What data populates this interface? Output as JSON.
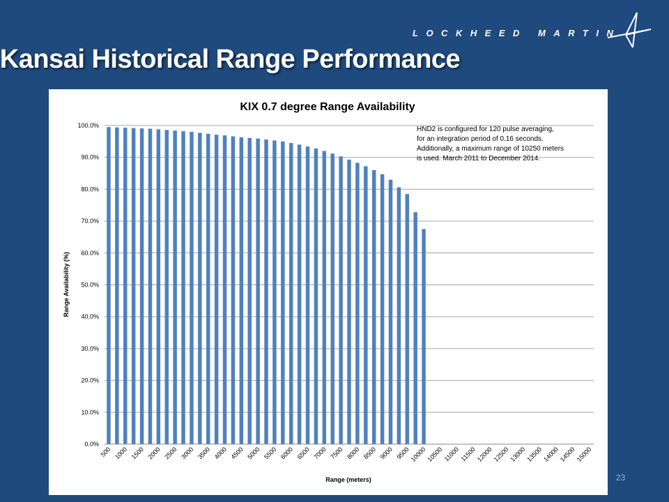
{
  "slide": {
    "brand": "LOCKHEED MARTIN",
    "title": "Kansai Historical Range Performance",
    "page_number": "23"
  },
  "colors": {
    "background": "#1f4a7e",
    "bar": "#4f81bd",
    "grid": "#a6a6a6"
  },
  "icons": {
    "brand_logo": "lockheed-star-icon"
  },
  "chart_data": {
    "type": "bar",
    "title": "KIX 0.7 degree Range Availability",
    "xlabel": "Range (meters)",
    "ylabel": "Range Availability (%)",
    "ylim": [
      0,
      100
    ],
    "yticks": [
      "0.0%",
      "10.0%",
      "20.0%",
      "30.0%",
      "40.0%",
      "50.0%",
      "60.0%",
      "70.0%",
      "80.0%",
      "90.0%",
      "100.0%"
    ],
    "categories": [
      "500",
      "750",
      "1000",
      "1250",
      "1500",
      "1750",
      "2000",
      "2250",
      "2500",
      "2750",
      "3000",
      "3250",
      "3500",
      "3750",
      "4000",
      "4250",
      "4500",
      "4750",
      "5000",
      "5250",
      "5500",
      "5750",
      "6000",
      "6250",
      "6500",
      "6750",
      "7000",
      "7250",
      "7500",
      "7750",
      "8000",
      "8250",
      "8500",
      "8750",
      "9000",
      "9250",
      "9500",
      "9750",
      "10000",
      "10250",
      "10500",
      "10750",
      "11000",
      "11250",
      "11500",
      "11750",
      "12000",
      "12250",
      "12500",
      "12750",
      "13000",
      "13250",
      "13500",
      "13750",
      "14000",
      "14250",
      "14500",
      "14750",
      "15000"
    ],
    "x_tick_labels": [
      "500",
      "1000",
      "1500",
      "2000",
      "2500",
      "3000",
      "3500",
      "4000",
      "4500",
      "5000",
      "5500",
      "6000",
      "6500",
      "7000",
      "7500",
      "8000",
      "8500",
      "9000",
      "9500",
      "10000",
      "10500",
      "11000",
      "11500",
      "12000",
      "12500",
      "13000",
      "13500",
      "14000",
      "14500",
      "15000"
    ],
    "values": [
      99.5,
      99.4,
      99.3,
      99.2,
      99.1,
      99.0,
      98.8,
      98.6,
      98.4,
      98.2,
      98.0,
      97.7,
      97.4,
      97.1,
      96.9,
      96.6,
      96.3,
      96.1,
      95.9,
      95.6,
      95.3,
      95.0,
      94.5,
      94.0,
      93.4,
      92.8,
      92.0,
      91.2,
      90.3,
      89.3,
      88.3,
      87.2,
      86.0,
      84.7,
      83.0,
      80.6,
      78.5,
      72.8,
      67.5,
      0,
      0,
      0,
      0,
      0,
      0,
      0,
      0,
      0,
      0,
      0,
      0,
      0,
      0,
      0,
      0,
      0,
      0,
      0,
      0
    ],
    "annotation": [
      "HND2 is configured for 120 pulse averaging,",
      "for an integration period of 0.16 seconds.",
      "Additionally, a maximum range of 10250 meters",
      "is used.  March 2011 to December 2014."
    ],
    "grid": true,
    "legend": "none"
  }
}
